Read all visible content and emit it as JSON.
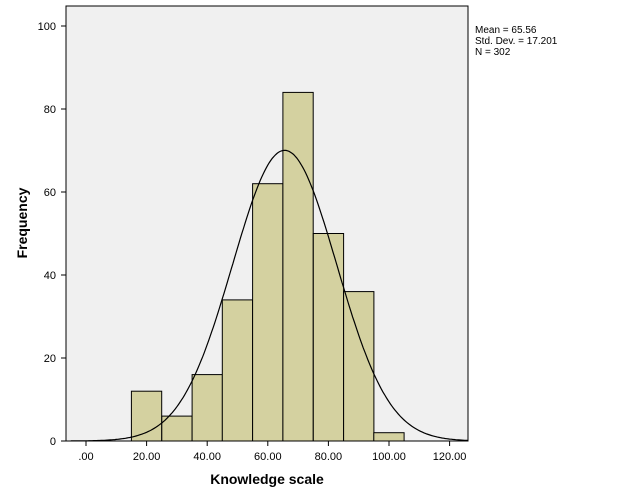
{
  "chart_data": {
    "type": "bar",
    "subtype": "histogram",
    "xlabel": "Knowledge scale",
    "ylabel": "Frequency",
    "xlim": [
      -5,
      127
    ],
    "ylim": [
      0,
      105
    ],
    "x_ticks": [
      0,
      20,
      40,
      60,
      80,
      100,
      120
    ],
    "x_tick_labels": [
      ".00",
      "20.00",
      "40.00",
      "60.00",
      "80.00",
      "100.00",
      "120.00"
    ],
    "y_ticks": [
      0,
      20,
      40,
      60,
      80,
      100
    ],
    "y_tick_labels": [
      "0",
      "20",
      "40",
      "60",
      "80",
      "100"
    ],
    "bin_width": 10,
    "bins": [
      {
        "start": 15,
        "end": 25,
        "count": 12
      },
      {
        "start": 25,
        "end": 35,
        "count": 6
      },
      {
        "start": 35,
        "end": 45,
        "count": 16
      },
      {
        "start": 45,
        "end": 55,
        "count": 34
      },
      {
        "start": 55,
        "end": 65,
        "count": 62
      },
      {
        "start": 65,
        "end": 75,
        "count": 84
      },
      {
        "start": 75,
        "end": 85,
        "count": 50
      },
      {
        "start": 85,
        "end": 95,
        "count": 36
      },
      {
        "start": 95,
        "end": 105,
        "count": 2
      }
    ],
    "normal_curve": {
      "mean": 65.56,
      "sd": 17.201,
      "n": 302
    },
    "stats_text": [
      "Mean = 65.56",
      "Std. Dev. = 17.201",
      "N = 302"
    ],
    "grid": false,
    "colors": {
      "bar_fill": "#d4d1a0",
      "bar_stroke": "#000000",
      "plot_bg": "#f0f0f0",
      "curve": "#000000"
    }
  }
}
